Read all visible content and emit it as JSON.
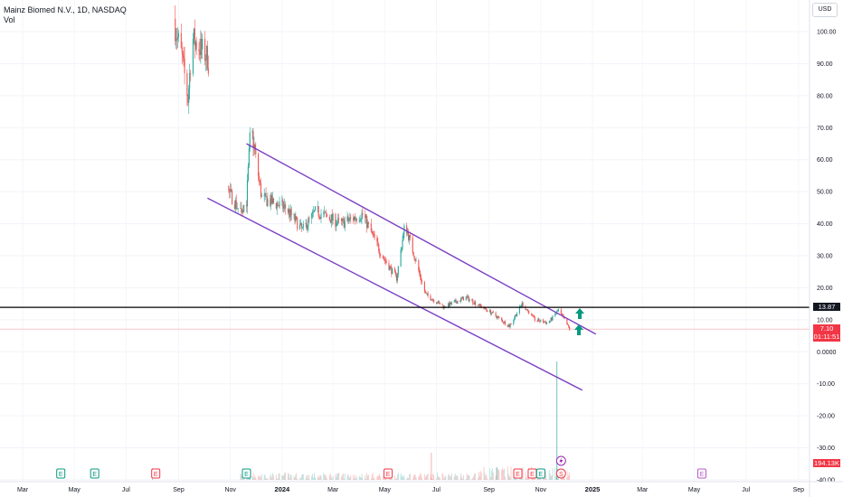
{
  "header": {
    "symbol": "Mainz Biomed N.V., 1D, NASDAQ",
    "volume_label": "Vol"
  },
  "currency_button": "USD",
  "price_labels": {
    "level_line": "13.87",
    "last_price": "7.10",
    "countdown": "01:11:51",
    "volume": "194.13K"
  },
  "colors": {
    "up": "#26a69a",
    "down": "#ef5350",
    "channel": "#7b3fc4",
    "level_line": "#000000",
    "last_price": "#f23645",
    "event_earnings": "#f23645",
    "event_earnings_future": "#b558c8",
    "event_dividend": "#089981",
    "arrow": "#089981"
  },
  "chart_data": {
    "type": "candlestick",
    "symbol": "Mainz Biomed N.V.",
    "interval": "1D",
    "exchange": "NASDAQ",
    "ylim": [
      -40,
      105
    ],
    "y_ticks": [
      "100.00",
      "90.00",
      "80.00",
      "70.00",
      "60.00",
      "50.00",
      "40.00",
      "30.00",
      "20.00",
      "10.00",
      "0.0000",
      "-10.00",
      "-20.00",
      "-30.00",
      "-40.00"
    ],
    "x_ticks": [
      "Mar",
      "May",
      "Jul",
      "Sep",
      "Nov",
      "2024",
      "Mar",
      "May",
      "Jul",
      "Sep",
      "Nov",
      "2025",
      "Mar",
      "May",
      "Jul",
      "Sep"
    ],
    "price_path": [
      {
        "x": "2023-08-26",
        "close": 104
      },
      {
        "x": "2023-09-05",
        "close": 92
      },
      {
        "x": "2023-09-12",
        "close": 79
      },
      {
        "x": "2023-09-17",
        "close": 98
      },
      {
        "x": "2023-10-05",
        "close": 92
      },
      {
        "x": "2023-10-30",
        "close": 50
      },
      {
        "x": "2023-11-12",
        "close": 44
      },
      {
        "x": "2023-11-20",
        "close": 47
      },
      {
        "x": "2023-11-25",
        "close": 71
      },
      {
        "x": "2023-12-08",
        "close": 48
      },
      {
        "x": "2024-01-05",
        "close": 45
      },
      {
        "x": "2024-01-25",
        "close": 38
      },
      {
        "x": "2024-02-10",
        "close": 44
      },
      {
        "x": "2024-03-10",
        "close": 40
      },
      {
        "x": "2024-04-05",
        "close": 43
      },
      {
        "x": "2024-04-28",
        "close": 30
      },
      {
        "x": "2024-05-15",
        "close": 23
      },
      {
        "x": "2024-05-25",
        "close": 40
      },
      {
        "x": "2024-06-18",
        "close": 18
      },
      {
        "x": "2024-07-10",
        "close": 14
      },
      {
        "x": "2024-08-05",
        "close": 17
      },
      {
        "x": "2024-09-05",
        "close": 12
      },
      {
        "x": "2024-09-25",
        "close": 8
      },
      {
        "x": "2024-10-10",
        "close": 15
      },
      {
        "x": "2024-10-25",
        "close": 10
      },
      {
        "x": "2024-11-10",
        "close": 9
      },
      {
        "x": "2024-11-22",
        "close": 13
      },
      {
        "x": "2024-12-05",
        "close": 7.1
      }
    ],
    "level_line": 13.87,
    "last_price": 7.1,
    "volume_last": "194.13K",
    "volume_spike": {
      "x": "2024-11-20",
      "relative_height": 1.0
    },
    "channel": {
      "upper": [
        {
          "x": "2023-11-20",
          "y": 65
        },
        {
          "x": "2025-01-05",
          "y": 5.5
        }
      ],
      "lower": [
        {
          "x": "2023-10-05",
          "y": 48
        },
        {
          "x": "2024-12-20",
          "y": -12
        }
      ]
    },
    "events": [
      {
        "type": "dividend",
        "letter": "E",
        "x": "2023-04-15"
      },
      {
        "type": "dividend",
        "letter": "E",
        "x": "2023-05-25"
      },
      {
        "type": "earnings",
        "letter": "E",
        "x": "2023-08-05"
      },
      {
        "type": "dividend",
        "letter": "E",
        "x": "2023-11-20"
      },
      {
        "type": "earnings",
        "letter": "E",
        "x": "2024-05-05"
      },
      {
        "type": "earnings",
        "letter": "E",
        "x": "2024-10-05"
      },
      {
        "type": "earnings",
        "letter": "E",
        "x": "2024-10-22"
      },
      {
        "type": "dividend",
        "letter": "E",
        "x": "2024-11-01"
      },
      {
        "type": "split",
        "letter": "S",
        "x": "2024-11-25"
      },
      {
        "type": "earnings-future",
        "letter": "E",
        "x": "2025-05-10"
      }
    ]
  }
}
